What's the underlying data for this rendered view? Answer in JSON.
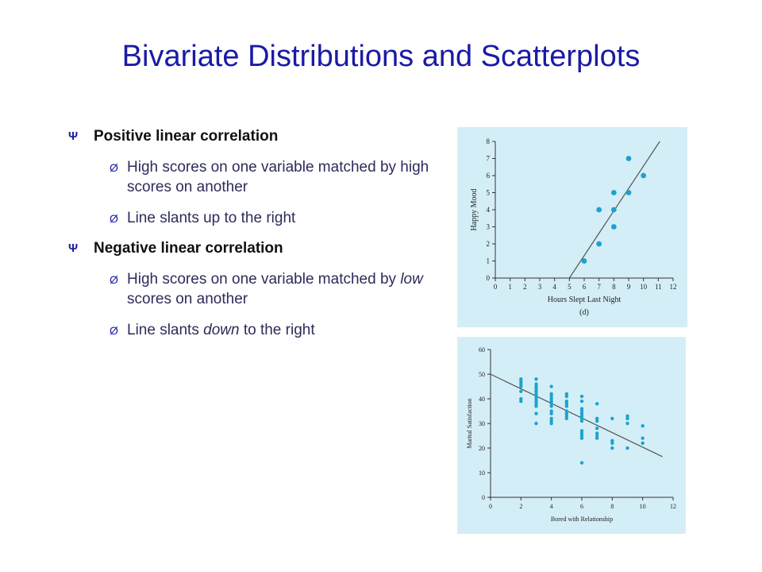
{
  "title": "Bivariate Distributions and Scatterplots",
  "bullets": [
    {
      "marker": "Ψ",
      "label": "Positive linear correlation",
      "subitems": [
        {
          "marker": "Ø",
          "pre": "High scores on one variable matched by high scores on another",
          "em": "",
          "post": ""
        },
        {
          "marker": "Ø",
          "pre": "Line slants up to the right",
          "em": "",
          "post": ""
        }
      ]
    },
    {
      "marker": "Ψ",
      "label": "Negative linear correlation",
      "subitems": [
        {
          "marker": "Ø",
          "pre": "High scores on one variable matched by ",
          "em": "low",
          "post": " scores on another"
        },
        {
          "marker": "Ø",
          "pre": "Line slants ",
          "em": "down",
          "post": " to the right"
        }
      ]
    }
  ],
  "colors": {
    "title": "#1a1aa6",
    "panel_bg": "#d4eef7",
    "points": "#1aa3cf",
    "line": "#555555"
  },
  "chart_data": [
    {
      "type": "scatter",
      "xlabel": "Hours Slept Last Night",
      "ylabel": "Happy Mood",
      "caption": "(d)",
      "xlim": [
        0,
        12
      ],
      "ylim": [
        0,
        8
      ],
      "xticks": [
        "0",
        "1",
        "2",
        "3",
        "4",
        "5",
        "6",
        "7",
        "8",
        "9",
        "10",
        "11",
        "12"
      ],
      "yticks": [
        "0",
        "1",
        "2",
        "3",
        "4",
        "5",
        "6",
        "7",
        "8"
      ],
      "points": [
        [
          6,
          1
        ],
        [
          7,
          2
        ],
        [
          7,
          4
        ],
        [
          8,
          3
        ],
        [
          8,
          4
        ],
        [
          8,
          5
        ],
        [
          9,
          5
        ],
        [
          9,
          7
        ],
        [
          10,
          6
        ]
      ],
      "trend_line": [
        [
          5,
          0
        ],
        [
          11.1,
          8
        ]
      ]
    },
    {
      "type": "scatter",
      "xlabel": "Bored with Relationship",
      "ylabel": "Marital Satisfaction",
      "xlim": [
        0,
        12
      ],
      "ylim": [
        0,
        60
      ],
      "xticks": [
        "0",
        "2",
        "4",
        "6",
        "8",
        "10",
        "12"
      ],
      "yticks": [
        "0",
        "10",
        "20",
        "30",
        "40",
        "50",
        "60"
      ],
      "points": [
        [
          2,
          48
        ],
        [
          2,
          47
        ],
        [
          2,
          46
        ],
        [
          2,
          45
        ],
        [
          2,
          43
        ],
        [
          2,
          40
        ],
        [
          2,
          39
        ],
        [
          3,
          48
        ],
        [
          3,
          46
        ],
        [
          3,
          45
        ],
        [
          3,
          44
        ],
        [
          3,
          43
        ],
        [
          3,
          42
        ],
        [
          3,
          41
        ],
        [
          3,
          40
        ],
        [
          3,
          39
        ],
        [
          3,
          38
        ],
        [
          3,
          37
        ],
        [
          3,
          34
        ],
        [
          3,
          30
        ],
        [
          4,
          45
        ],
        [
          4,
          42
        ],
        [
          4,
          41
        ],
        [
          4,
          40
        ],
        [
          4,
          39
        ],
        [
          4,
          38
        ],
        [
          4,
          37
        ],
        [
          4,
          35
        ],
        [
          4,
          34
        ],
        [
          4,
          32
        ],
        [
          4,
          31
        ],
        [
          4,
          30
        ],
        [
          5,
          42
        ],
        [
          5,
          41
        ],
        [
          5,
          39
        ],
        [
          5,
          38
        ],
        [
          5,
          37
        ],
        [
          5,
          35
        ],
        [
          5,
          34
        ],
        [
          5,
          33
        ],
        [
          5,
          32
        ],
        [
          6,
          41
        ],
        [
          6,
          39
        ],
        [
          6,
          36
        ],
        [
          6,
          35
        ],
        [
          6,
          34
        ],
        [
          6,
          33
        ],
        [
          6,
          32
        ],
        [
          6,
          31
        ],
        [
          6,
          27
        ],
        [
          6,
          26
        ],
        [
          6,
          25
        ],
        [
          6,
          24
        ],
        [
          6,
          14
        ],
        [
          7,
          38
        ],
        [
          7,
          32
        ],
        [
          7,
          31
        ],
        [
          7,
          28
        ],
        [
          7,
          26
        ],
        [
          7,
          25
        ],
        [
          7,
          24
        ],
        [
          8,
          32
        ],
        [
          8,
          23
        ],
        [
          8,
          22
        ],
        [
          8,
          20
        ],
        [
          9,
          33
        ],
        [
          9,
          32
        ],
        [
          9,
          30
        ],
        [
          9,
          20
        ],
        [
          10,
          29
        ],
        [
          10,
          24
        ],
        [
          10,
          22
        ]
      ],
      "trend_line": [
        [
          0,
          50
        ],
        [
          11.3,
          16.5
        ]
      ]
    }
  ]
}
